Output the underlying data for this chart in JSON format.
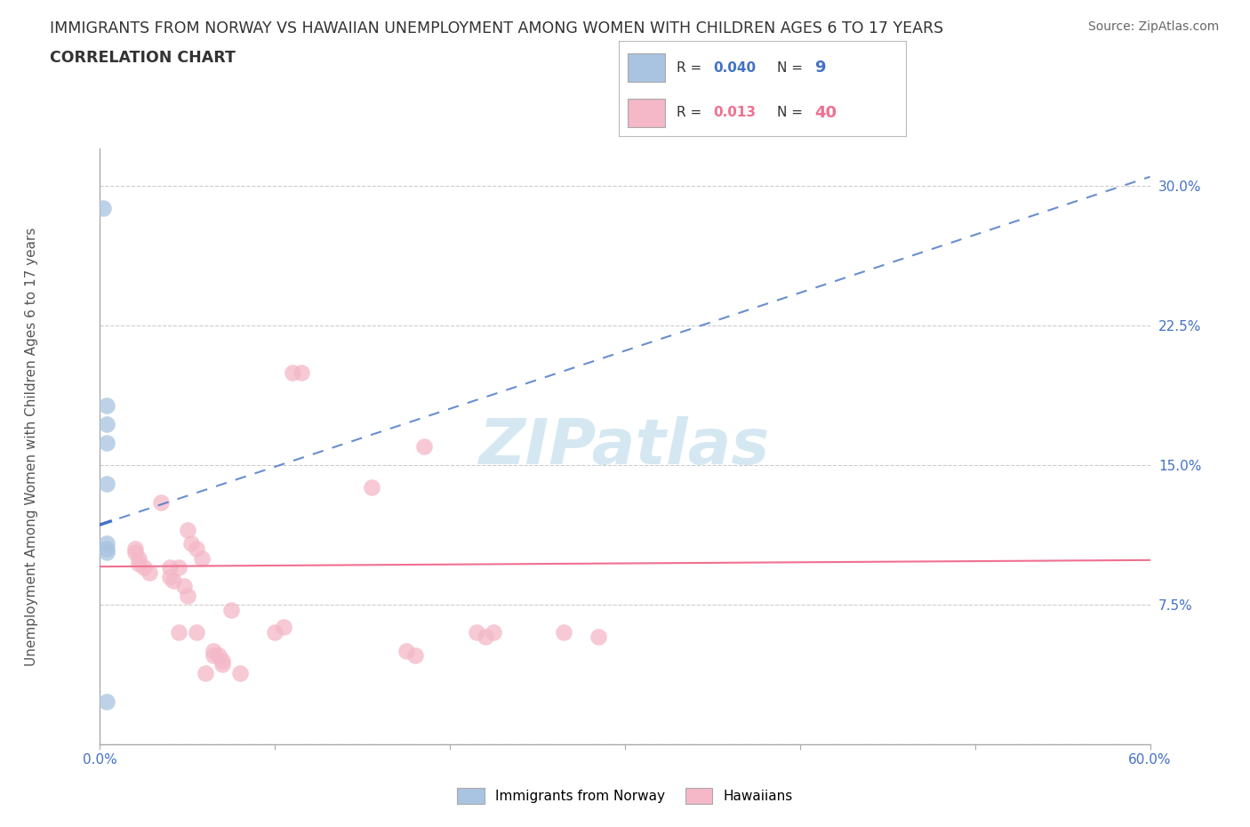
{
  "title_line1": "IMMIGRANTS FROM NORWAY VS HAWAIIAN UNEMPLOYMENT AMONG WOMEN WITH CHILDREN AGES 6 TO 17 YEARS",
  "title_line2": "CORRELATION CHART",
  "source_text": "Source: ZipAtlas.com",
  "ylabel": "Unemployment Among Women with Children Ages 6 to 17 years",
  "xlim": [
    0.0,
    0.6
  ],
  "ylim": [
    0.0,
    0.32
  ],
  "xticks": [
    0.0,
    0.1,
    0.2,
    0.3,
    0.4,
    0.5,
    0.6
  ],
  "xticklabels": [
    "0.0%",
    "",
    "",
    "",
    "",
    "",
    "60.0%"
  ],
  "yticks": [
    0.0,
    0.075,
    0.15,
    0.225,
    0.3
  ],
  "yticklabels": [
    "",
    "7.5%",
    "15.0%",
    "22.5%",
    "30.0%"
  ],
  "norway_color": "#a8c4e0",
  "hawaii_color": "#f4b8c8",
  "norway_line_color": "#4472c4",
  "hawaii_line_color": "#f07090",
  "r_norway": 0.04,
  "n_norway": 9,
  "r_hawaii": 0.013,
  "n_hawaii": 40,
  "norway_dots": [
    [
      0.002,
      0.288
    ],
    [
      0.004,
      0.182
    ],
    [
      0.004,
      0.172
    ],
    [
      0.004,
      0.162
    ],
    [
      0.004,
      0.14
    ],
    [
      0.004,
      0.108
    ],
    [
      0.004,
      0.105
    ],
    [
      0.004,
      0.103
    ],
    [
      0.004,
      0.023
    ]
  ],
  "hawaii_dots": [
    [
      0.02,
      0.105
    ],
    [
      0.02,
      0.103
    ],
    [
      0.022,
      0.1
    ],
    [
      0.022,
      0.097
    ],
    [
      0.025,
      0.095
    ],
    [
      0.028,
      0.092
    ],
    [
      0.035,
      0.13
    ],
    [
      0.04,
      0.095
    ],
    [
      0.04,
      0.09
    ],
    [
      0.042,
      0.088
    ],
    [
      0.045,
      0.095
    ],
    [
      0.045,
      0.06
    ],
    [
      0.048,
      0.085
    ],
    [
      0.05,
      0.115
    ],
    [
      0.05,
      0.08
    ],
    [
      0.052,
      0.108
    ],
    [
      0.055,
      0.105
    ],
    [
      0.055,
      0.06
    ],
    [
      0.058,
      0.1
    ],
    [
      0.06,
      0.038
    ],
    [
      0.065,
      0.05
    ],
    [
      0.065,
      0.048
    ],
    [
      0.068,
      0.048
    ],
    [
      0.07,
      0.045
    ],
    [
      0.07,
      0.043
    ],
    [
      0.075,
      0.072
    ],
    [
      0.08,
      0.038
    ],
    [
      0.1,
      0.06
    ],
    [
      0.105,
      0.063
    ],
    [
      0.11,
      0.2
    ],
    [
      0.115,
      0.2
    ],
    [
      0.155,
      0.138
    ],
    [
      0.175,
      0.05
    ],
    [
      0.18,
      0.048
    ],
    [
      0.185,
      0.16
    ],
    [
      0.215,
      0.06
    ],
    [
      0.22,
      0.058
    ],
    [
      0.225,
      0.06
    ],
    [
      0.265,
      0.06
    ],
    [
      0.285,
      0.058
    ]
  ],
  "grid_color": "#cccccc",
  "background_color": "#ffffff",
  "watermark_text": "ZIPatlas",
  "watermark_color": "#d5e8f2",
  "norway_trendline_x0": 0.0,
  "norway_trendline_y0": 0.118,
  "norway_trendline_x1": 0.6,
  "norway_trendline_y1": 0.305,
  "hawaii_trendline_x0": 0.0,
  "hawaii_trendline_y0": 0.0955,
  "hawaii_trendline_x1": 0.6,
  "hawaii_trendline_y1": 0.099
}
